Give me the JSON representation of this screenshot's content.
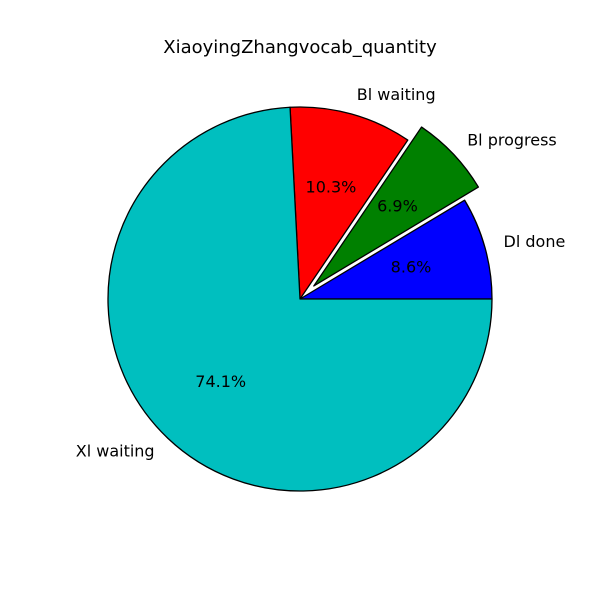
{
  "chart_data": {
    "type": "pie",
    "title": "XiaoyingZhangvocab_quantity",
    "start_angle_deg": 0,
    "direction": "counterclockwise",
    "slices": [
      {
        "label": "Dl done",
        "value": 8.6,
        "pct_label": "8.6%",
        "color": "#0000ff",
        "exploded": false
      },
      {
        "label": "Bl progress",
        "value": 6.9,
        "pct_label": "6.9%",
        "color": "#008000",
        "exploded": true
      },
      {
        "label": "Bl waiting",
        "value": 10.3,
        "pct_label": "10.3%",
        "color": "#ff0000",
        "exploded": false
      },
      {
        "label": "Xl waiting",
        "value": 74.1,
        "pct_label": "74.1%",
        "color": "#00bfbf",
        "exploded": false
      }
    ],
    "edge_color": "#000000"
  }
}
